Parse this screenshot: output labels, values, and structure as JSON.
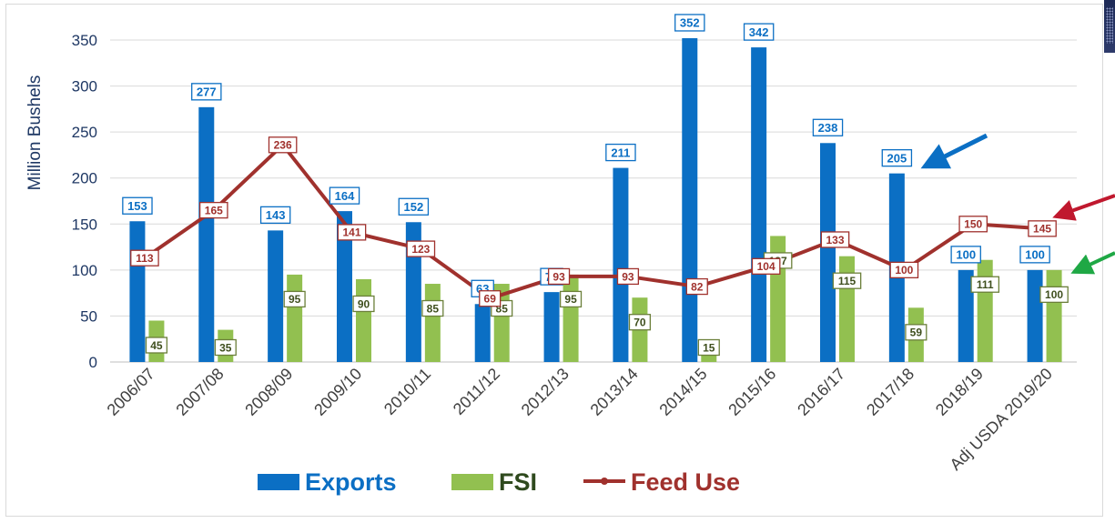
{
  "chart_data": {
    "type": "bar",
    "ylabel": "Million Bushels",
    "ylim": [
      0,
      350
    ],
    "yticks": [
      0,
      50,
      100,
      150,
      200,
      250,
      300,
      350
    ],
    "grid": true,
    "legend_position": "bottom",
    "categories": [
      "2006/07",
      "2007/08",
      "2008/09",
      "2009/10",
      "2010/11",
      "2011/12",
      "2012/13",
      "2013/14",
      "2014/15",
      "2015/16",
      "2016/17",
      "2017/18",
      "2018/19",
      "Adj USDA 2019/20"
    ],
    "series": [
      {
        "name": "Exports",
        "type": "bar",
        "color": "#0b6fc4",
        "values": [
          153,
          277,
          143,
          164,
          152,
          63,
          76,
          211,
          352,
          342,
          238,
          205,
          100,
          100
        ]
      },
      {
        "name": "FSI",
        "type": "bar",
        "color": "#92c050",
        "values": [
          45,
          35,
          95,
          90,
          85,
          85,
          95,
          70,
          15,
          137,
          115,
          59,
          111,
          100
        ]
      },
      {
        "name": "Feed Use",
        "type": "line",
        "color": "#a0312d",
        "values": [
          113,
          165,
          236,
          141,
          123,
          69,
          93,
          93,
          82,
          104,
          133,
          100,
          150,
          145
        ]
      }
    ],
    "annotations": [
      {
        "type": "arrow",
        "color": "#0b6fc4",
        "points_to": "Exports 2017/18"
      },
      {
        "type": "arrow",
        "color": "#c0182e",
        "points_to": "Feed Use Adj USDA 2019/20"
      },
      {
        "type": "arrow",
        "color": "#1fa845",
        "points_to": "FSI Adj USDA 2019/20"
      }
    ]
  }
}
